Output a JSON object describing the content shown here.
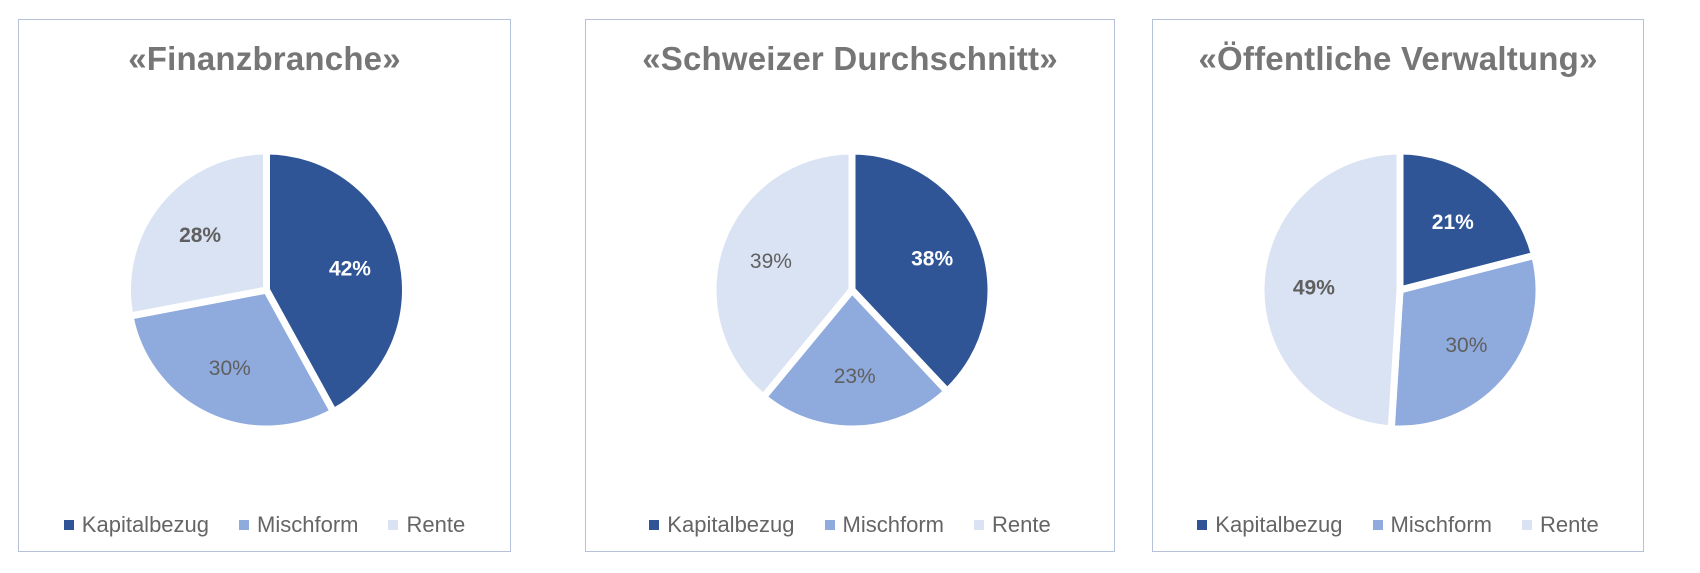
{
  "colors": {
    "kapitalbezug": "#2F5597",
    "mischform": "#8FAADC",
    "rente": "#DAE3F3",
    "label_dark_text": "#5F5F5F",
    "label_light_text": "#FFFFFF",
    "title_text": "#767676",
    "legend_text": "#656565",
    "frame_border": "#B4C1D9"
  },
  "legend": {
    "items": [
      {
        "label": "Kapitalbezug",
        "color": "#2F5597"
      },
      {
        "label": "Mischform",
        "color": "#8FAADC"
      },
      {
        "label": "Rente",
        "color": "#DAE3F3"
      }
    ]
  },
  "charts": [
    {
      "title": "«Finanzbranche»",
      "labels": [
        "42%",
        "30%",
        "28%"
      ]
    },
    {
      "title": "«Schweizer Durchschnitt»",
      "labels": [
        "38%",
        "23%",
        "39%"
      ]
    },
    {
      "title": "«Öffentliche Verwaltung»",
      "labels": [
        "21%",
        "30%",
        "49%"
      ]
    }
  ],
  "chart_data": [
    {
      "type": "pie",
      "title": "«Finanzbranche»",
      "categories": [
        "Kapitalbezug",
        "Mischform",
        "Rente"
      ],
      "values": [
        42,
        30,
        28
      ],
      "unit": "%",
      "legend_position": "bottom",
      "start_angle": "12 o'clock, clockwise"
    },
    {
      "type": "pie",
      "title": "«Schweizer Durchschnitt»",
      "categories": [
        "Kapitalbezug",
        "Mischform",
        "Rente"
      ],
      "values": [
        38,
        23,
        39
      ],
      "unit": "%",
      "legend_position": "bottom",
      "start_angle": "12 o'clock, clockwise"
    },
    {
      "type": "pie",
      "title": "«Öffentliche Verwaltung»",
      "categories": [
        "Kapitalbezug",
        "Mischform",
        "Rente"
      ],
      "values": [
        21,
        30,
        49
      ],
      "unit": "%",
      "legend_position": "bottom",
      "start_angle": "12 o'clock, clockwise"
    }
  ]
}
